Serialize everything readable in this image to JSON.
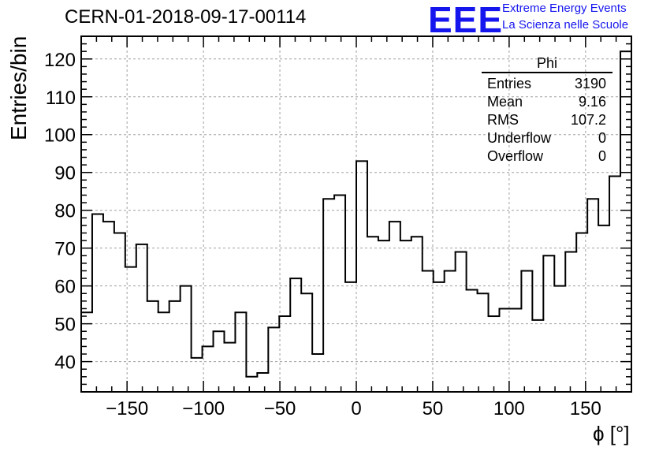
{
  "header": {
    "run_title": "CERN-01-2018-09-17-00114",
    "logo_letters": "EEE",
    "logo_line1": "Extreme Energy Events",
    "logo_line2": "La Scienza nelle Scuole"
  },
  "stats": {
    "title": "Phi",
    "rows": [
      {
        "label": "Entries",
        "value": "3190"
      },
      {
        "label": "Mean",
        "value": "9.16"
      },
      {
        "label": "RMS",
        "value": "107.2"
      },
      {
        "label": "Underflow",
        "value": "0"
      },
      {
        "label": "Overflow",
        "value": "0"
      }
    ]
  },
  "colors": {
    "logo": "#1515ee",
    "histogram": "#000000",
    "grid": "#a0a0a0"
  },
  "chart_data": {
    "type": "bar",
    "style": "step-histogram",
    "title": "",
    "xlabel": "ϕ [°]",
    "ylabel": "Entries/bin",
    "xlim": [
      -180,
      180
    ],
    "ylim": [
      32,
      126
    ],
    "grid": true,
    "bin_width": 7.2,
    "x_ticks": [
      -150,
      -100,
      -50,
      0,
      50,
      100,
      150
    ],
    "x_tick_labels": [
      "−150",
      "−100",
      "−50",
      "0",
      "50",
      "100",
      "150"
    ],
    "y_ticks": [
      40,
      50,
      60,
      70,
      80,
      90,
      100,
      110,
      120
    ],
    "y_tick_labels": [
      "40",
      "50",
      "60",
      "70",
      "80",
      "90",
      "100",
      "110",
      "120"
    ],
    "values": [
      53,
      79,
      77,
      74,
      65,
      71,
      56,
      53,
      56,
      60,
      41,
      44,
      48,
      45,
      53,
      36,
      37,
      49,
      52,
      62,
      58,
      42,
      83,
      84,
      61,
      93,
      73,
      72,
      77,
      72,
      73,
      64,
      61,
      64,
      69,
      59,
      58,
      52,
      54,
      54,
      64,
      51,
      68,
      60,
      69,
      74,
      83,
      76,
      89,
      122
    ]
  }
}
